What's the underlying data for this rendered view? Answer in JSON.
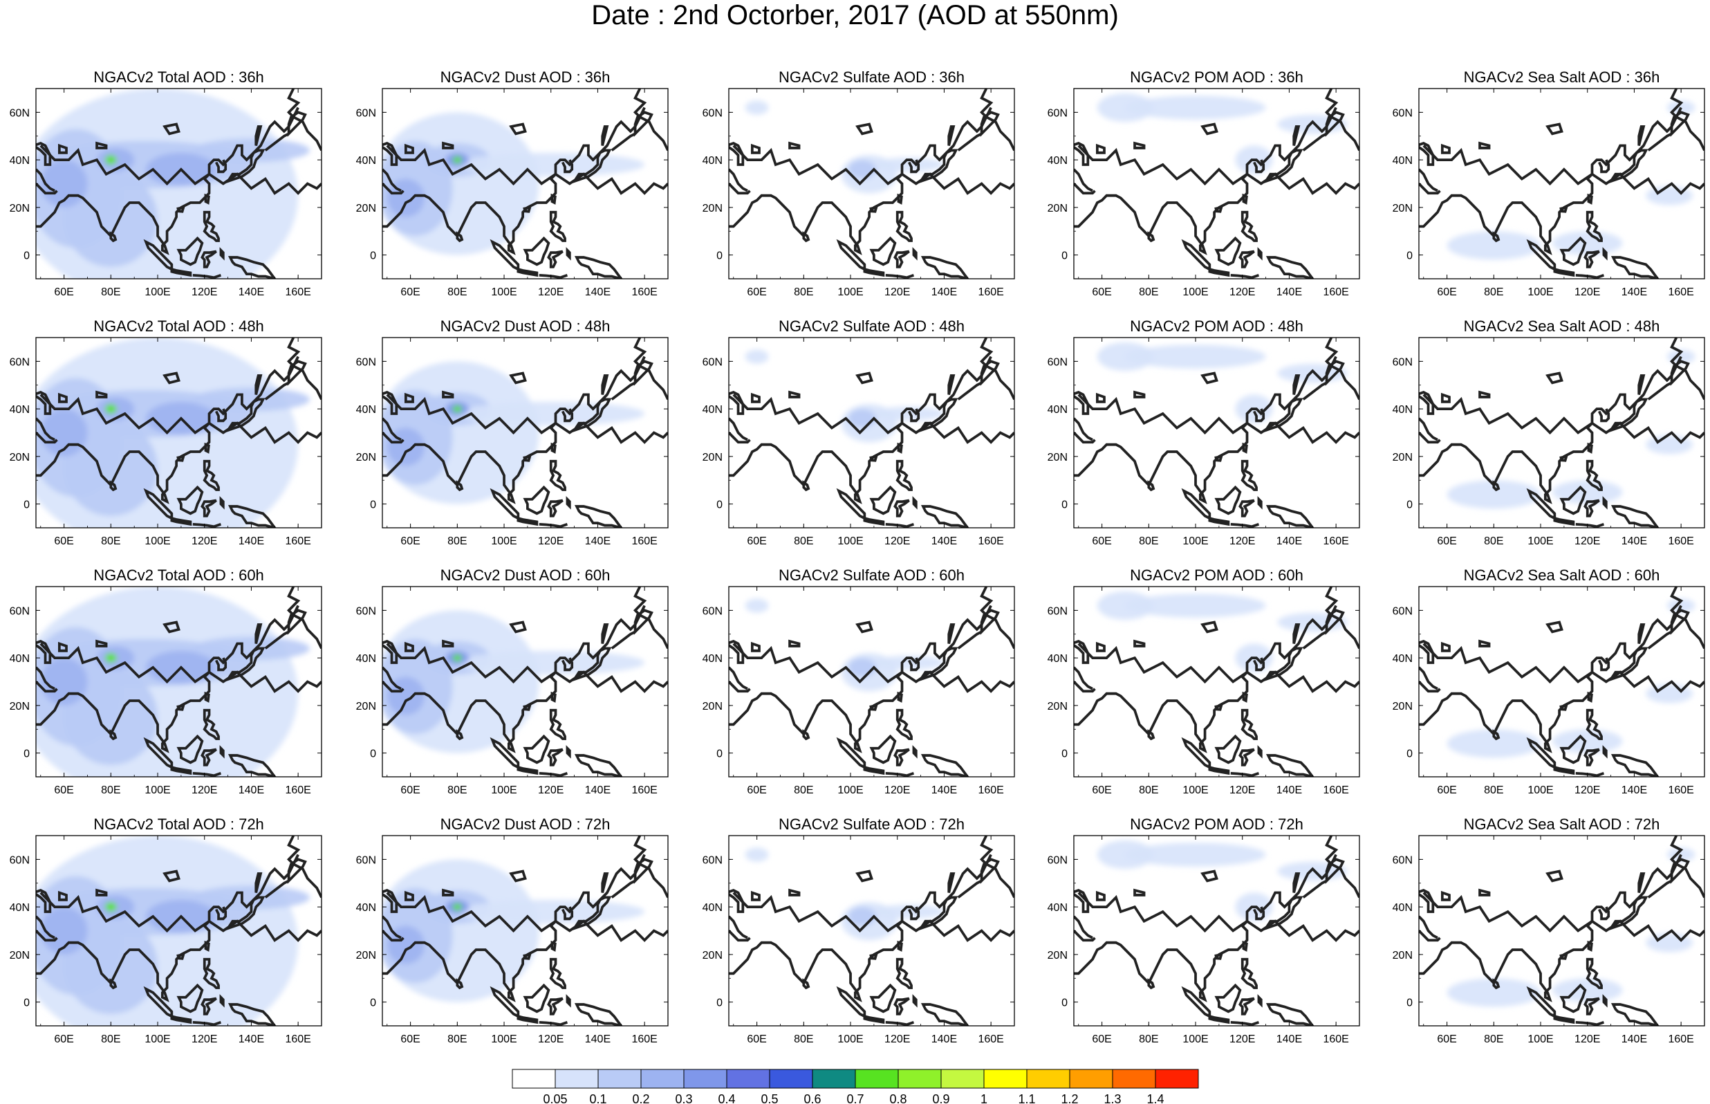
{
  "title": "Date : 2nd Octorber, 2017 (AOD at 550nm)",
  "map": {
    "lon_range": [
      48,
      170
    ],
    "lat_range": [
      -10,
      70
    ],
    "lon_ticks": [
      "60E",
      "80E",
      "100E",
      "120E",
      "140E",
      "160E"
    ],
    "lat_ticks": [
      "60N",
      "40N",
      "20N",
      "0"
    ],
    "lon_tick_values": [
      60,
      80,
      100,
      120,
      140,
      160
    ],
    "lat_tick_values": [
      60,
      40,
      20,
      0
    ]
  },
  "panels": [
    [
      {
        "title": "NGACv2 Total AOD : 36h",
        "species": "total"
      },
      {
        "title": "NGACv2 Dust AOD : 36h",
        "species": "dust"
      },
      {
        "title": "NGACv2 Sulfate AOD : 36h",
        "species": "sulfate"
      },
      {
        "title": "NGACv2 POM AOD : 36h",
        "species": "pom"
      },
      {
        "title": "NGACv2 Sea Salt AOD : 36h",
        "species": "seasalt"
      }
    ],
    [
      {
        "title": "NGACv2 Total AOD : 48h",
        "species": "total"
      },
      {
        "title": "NGACv2 Dust AOD : 48h",
        "species": "dust"
      },
      {
        "title": "NGACv2 Sulfate AOD : 48h",
        "species": "sulfate"
      },
      {
        "title": "NGACv2 POM AOD : 48h",
        "species": "pom"
      },
      {
        "title": "NGACv2 Sea Salt AOD : 48h",
        "species": "seasalt"
      }
    ],
    [
      {
        "title": "NGACv2 Total AOD : 60h",
        "species": "total"
      },
      {
        "title": "NGACv2 Dust AOD : 60h",
        "species": "dust"
      },
      {
        "title": "NGACv2 Sulfate AOD : 60h",
        "species": "sulfate"
      },
      {
        "title": "NGACv2 POM AOD : 60h",
        "species": "pom"
      },
      {
        "title": "NGACv2 Sea Salt AOD : 60h",
        "species": "seasalt"
      }
    ],
    [
      {
        "title": "NGACv2 Total AOD : 72h",
        "species": "total"
      },
      {
        "title": "NGACv2 Dust AOD : 72h",
        "species": "dust"
      },
      {
        "title": "NGACv2 Sulfate AOD : 72h",
        "species": "sulfate"
      },
      {
        "title": "NGACv2 POM AOD : 72h",
        "species": "pom"
      },
      {
        "title": "NGACv2 Sea Salt  AOD : 72h",
        "species": "seasalt"
      }
    ]
  ],
  "colorbar": {
    "labels": [
      "0.05",
      "0.1",
      "0.2",
      "0.3",
      "0.4",
      "0.5",
      "0.6",
      "0.7",
      "0.8",
      "0.9",
      "1",
      "1.1",
      "1.2",
      "1.3",
      "1.4"
    ],
    "colors": [
      "#ffffff",
      "#d7e3fb",
      "#b9cbf6",
      "#9db3f1",
      "#7f97ea",
      "#6272e3",
      "#3a59de",
      "#0f8a82",
      "#57e321",
      "#8ff12a",
      "#c4f840",
      "#ffff00",
      "#ffcd00",
      "#ff9e00",
      "#ff6a00",
      "#ff2200"
    ]
  }
}
